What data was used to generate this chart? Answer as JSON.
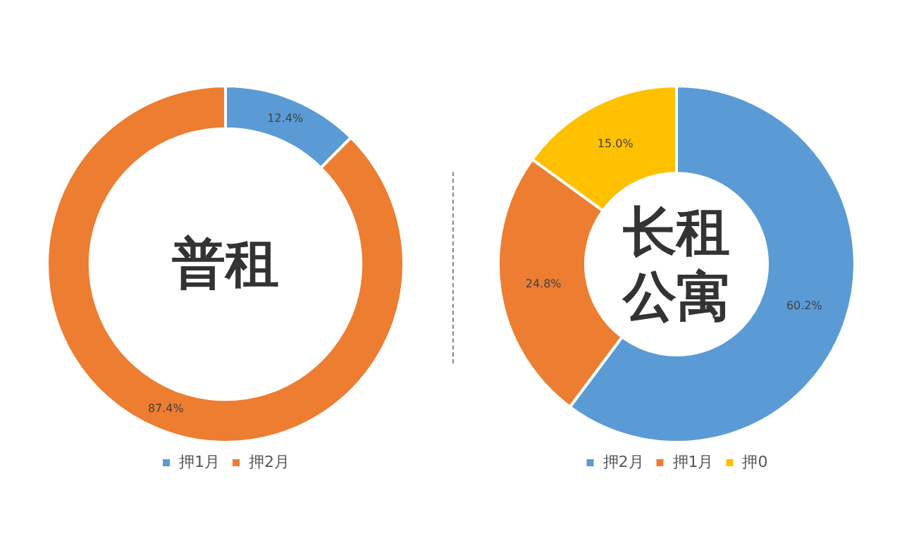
{
  "chart_data": [
    {
      "type": "donut",
      "categories": [
        "押1月",
        "押2月"
      ],
      "values": [
        12.4,
        87.4
      ],
      "colors": [
        "#5b9bd5",
        "#ed7d31"
      ],
      "value_labels": [
        "12.4%",
        "87.4%"
      ],
      "legend": "bottom",
      "annotations": [
        "普租"
      ]
    },
    {
      "type": "donut",
      "categories": [
        "押2月",
        "押1月",
        "押0"
      ],
      "values": [
        60.2,
        24.8,
        15.0
      ],
      "colors": [
        "#5b9bd5",
        "#ed7d31",
        "#ffc000"
      ],
      "value_labels": [
        "60.2%",
        "24.8%",
        "15.0%"
      ],
      "legend": "bottom",
      "annotations": [
        "长租公寓"
      ]
    }
  ]
}
